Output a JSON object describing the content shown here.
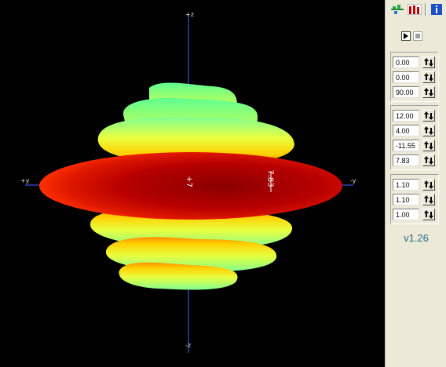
{
  "viewport": {
    "axis_labels": {
      "top": "+z",
      "bottom": "-z",
      "left": "+y",
      "right": "-y"
    },
    "plot_labels": {
      "center": "+7",
      "marker": "7.83"
    }
  },
  "panel": {
    "toolbar": {
      "icons": [
        "pattern-icon",
        "bars-icon",
        "info-icon"
      ]
    },
    "playback": {
      "play": "play-icon",
      "stop": "stop-icon"
    },
    "rotation": [
      "0.00",
      "0.00",
      "90.00"
    ],
    "scale": [
      "12.00",
      "4.00",
      "-11.55",
      "7.83"
    ],
    "stretch": [
      "1.10",
      "1.10",
      "1.00"
    ],
    "version": "v1.26"
  }
}
